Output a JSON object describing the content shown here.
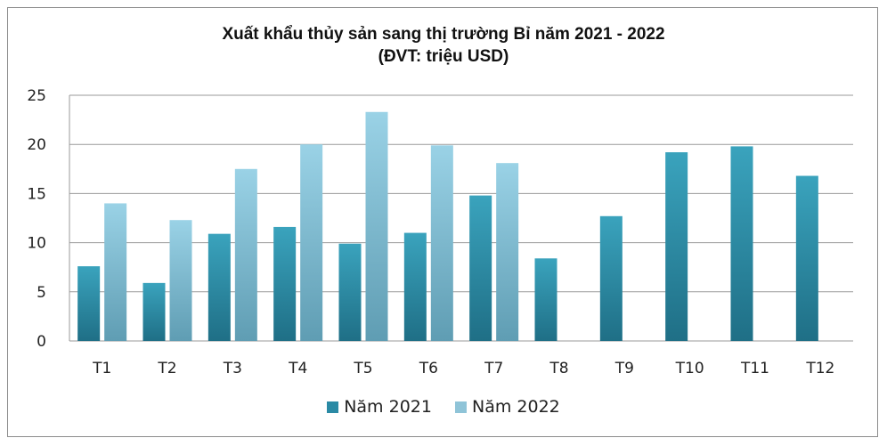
{
  "chart_data": {
    "type": "bar",
    "title": "Xuất khẩu thủy sản sang thị trường Bỉ năm 2021 - 2022",
    "subtitle": "(ĐVT: triệu USD)",
    "categories": [
      "T1",
      "T2",
      "T3",
      "T4",
      "T5",
      "T6",
      "T7",
      "T8",
      "T9",
      "T10",
      "T11",
      "T12"
    ],
    "series": [
      {
        "name": "Năm 2021",
        "color": "#2f93ad",
        "values": [
          7.6,
          5.9,
          10.9,
          11.6,
          9.9,
          11.0,
          14.8,
          8.4,
          12.7,
          19.2,
          19.8,
          16.8
        ]
      },
      {
        "name": "Năm 2022",
        "color": "#8fc4d8",
        "values": [
          14.0,
          12.3,
          17.5,
          20.0,
          23.3,
          19.9,
          18.1,
          null,
          null,
          null,
          null,
          null
        ]
      }
    ],
    "yticks": [
      0,
      5,
      10,
      15,
      20,
      25
    ],
    "ylim": [
      0,
      25
    ],
    "grid": true,
    "legend_position": "bottom"
  }
}
